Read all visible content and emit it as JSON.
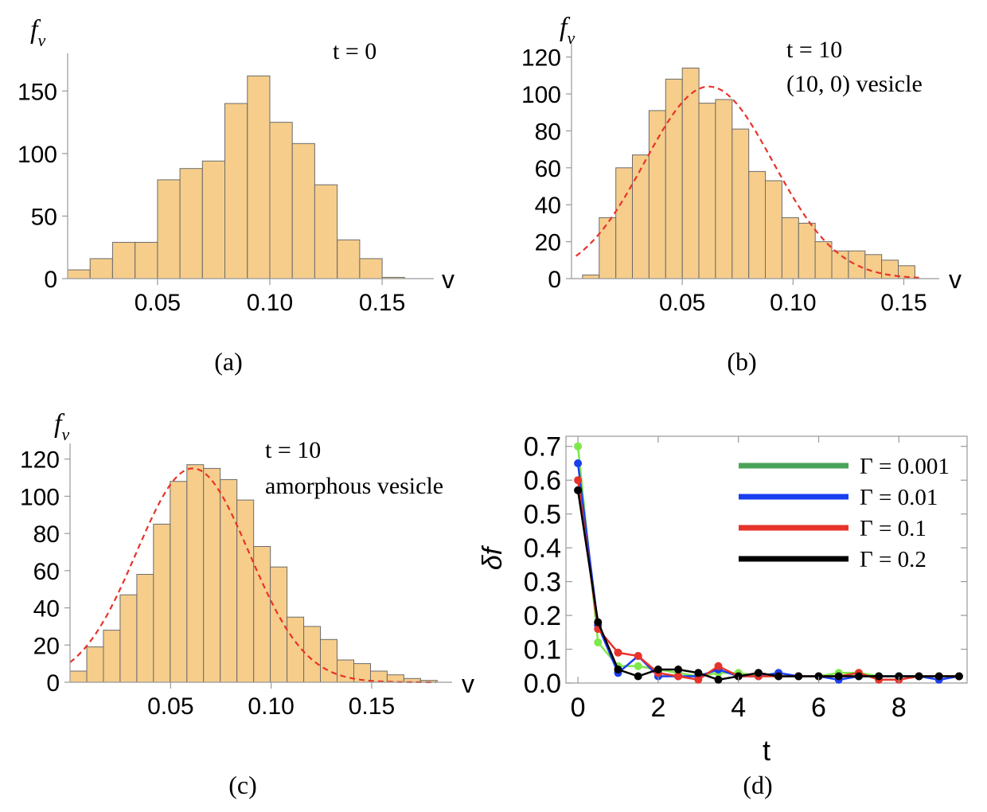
{
  "chart_data": [
    {
      "type": "histogram",
      "panel_label": "(a)",
      "ylabel_main": "f",
      "ylabel_sub": "v",
      "xlabel": "v",
      "annotation": [
        "t = 0"
      ],
      "xlim": [
        0.01,
        0.173
      ],
      "ylim": [
        0,
        175
      ],
      "xticks": [
        0.05,
        0.1,
        0.15
      ],
      "xtick_labels": [
        "0.05",
        "0.10",
        "0.15"
      ],
      "yticks": [
        0,
        50,
        100,
        150
      ],
      "ytick_labels": [
        "0",
        "50",
        "100",
        "150"
      ],
      "bin_start": 0.01,
      "bin_width": 0.01,
      "values": [
        7,
        16,
        29,
        29,
        79,
        88,
        94,
        140,
        162,
        125,
        108,
        75,
        31,
        16,
        1
      ],
      "bar_color": "#f6cd8b",
      "fit": null
    },
    {
      "type": "histogram",
      "panel_label": "(b)",
      "ylabel_main": "f",
      "ylabel_sub": "v",
      "xlabel": "v",
      "annotation": [
        "t = 10",
        "(10, 0) vesicle"
      ],
      "xlim": [
        0.0,
        0.166
      ],
      "ylim": [
        0,
        125
      ],
      "xticks": [
        0.05,
        0.1,
        0.15
      ],
      "xtick_labels": [
        "0.05",
        "0.10",
        "0.15"
      ],
      "yticks": [
        0,
        20,
        40,
        60,
        80,
        100,
        120
      ],
      "ytick_labels": [
        "0",
        "20",
        "40",
        "60",
        "80",
        "100",
        "120"
      ],
      "bin_start": 0.005,
      "bin_width": 0.0075,
      "values": [
        2,
        33,
        60,
        67,
        91,
        108,
        114,
        95,
        97,
        81,
        58,
        53,
        33,
        30,
        20,
        15,
        15,
        13,
        10,
        7,
        0
      ],
      "bar_color": "#f6cd8b",
      "fit": {
        "peak_x": 0.062,
        "peak_y": 104,
        "sigma": 0.029,
        "x_from": 0.002,
        "x_to": 0.157,
        "color": "#e8332a",
        "style": "dashed"
      }
    },
    {
      "type": "histogram",
      "panel_label": "(c)",
      "ylabel_main": "f",
      "ylabel_sub": "v",
      "xlabel": "v",
      "annotation": [
        "t = 10",
        "amorphous vesicle"
      ],
      "xlim": [
        0.0,
        0.19
      ],
      "ylim": [
        0,
        125
      ],
      "xticks": [
        0.05,
        0.1,
        0.15
      ],
      "xtick_labels": [
        "0.05",
        "0.10",
        "0.15"
      ],
      "yticks": [
        0,
        20,
        40,
        60,
        80,
        100,
        120
      ],
      "ytick_labels": [
        "0",
        "20",
        "40",
        "60",
        "80",
        "100",
        "120"
      ],
      "bin_start": 0.0,
      "bin_width": 0.0083,
      "values": [
        6,
        19,
        28,
        47,
        58,
        85,
        108,
        117,
        115,
        109,
        98,
        73,
        62,
        35,
        30,
        23,
        12,
        10,
        6,
        4,
        2,
        1,
        0
      ],
      "bar_color": "#f6cd8b",
      "fit": {
        "peak_x": 0.061,
        "peak_y": 115,
        "sigma": 0.028,
        "x_from": 0.0,
        "x_to": 0.182,
        "color": "#e8332a",
        "style": "dashed"
      }
    },
    {
      "type": "line",
      "panel_label": "(d)",
      "xlabel": "t",
      "ylabel": "δf",
      "xlim": [
        -0.3,
        9.7
      ],
      "ylim": [
        0.0,
        0.73
      ],
      "xticks": [
        0,
        2,
        4,
        6,
        8
      ],
      "xtick_labels": [
        "0",
        "2",
        "4",
        "6",
        "8"
      ],
      "yticks": [
        0.0,
        0.1,
        0.2,
        0.3,
        0.4,
        0.5,
        0.6,
        0.7
      ],
      "ytick_labels": [
        "0.0",
        "0.1",
        "0.2",
        "0.3",
        "0.4",
        "0.5",
        "0.6",
        "0.7"
      ],
      "x": [
        0,
        0.5,
        1,
        1.5,
        2,
        2.5,
        3,
        3.5,
        4,
        4.5,
        5,
        5.5,
        6,
        6.5,
        7,
        7.5,
        8,
        8.5,
        9,
        9.5
      ],
      "series": [
        {
          "name": "Γ = 0.001",
          "legend_color": "#4aa35a",
          "marker_color": "#7ee84a",
          "values": [
            0.7,
            0.12,
            0.05,
            0.05,
            0.04,
            0.03,
            0.02,
            0.03,
            0.03,
            0.02,
            0.02,
            0.02,
            0.02,
            0.03,
            0.03,
            0.02,
            0.02,
            0.02,
            0.02,
            0.02
          ]
        },
        {
          "name": "Γ = 0.01",
          "legend_color": "#1a3ff0",
          "marker_color": "#1a3ff0",
          "values": [
            0.65,
            0.17,
            0.03,
            0.08,
            0.02,
            0.02,
            0.02,
            0.04,
            0.02,
            0.02,
            0.03,
            0.02,
            0.02,
            0.01,
            0.02,
            0.02,
            0.02,
            0.02,
            0.01,
            0.02
          ]
        },
        {
          "name": "Γ = 0.1",
          "legend_color": "#e8332a",
          "marker_color": "#e8332a",
          "values": [
            0.6,
            0.16,
            0.09,
            0.08,
            0.03,
            0.02,
            0.01,
            0.05,
            0.02,
            0.02,
            0.02,
            0.02,
            0.02,
            0.02,
            0.03,
            0.01,
            0.01,
            0.02,
            0.02,
            0.02
          ]
        },
        {
          "name": "Γ = 0.2",
          "legend_color": "#000000",
          "marker_color": "#000000",
          "values": [
            0.57,
            0.18,
            0.04,
            0.02,
            0.04,
            0.04,
            0.03,
            0.01,
            0.02,
            0.03,
            0.02,
            0.02,
            0.02,
            0.02,
            0.02,
            0.02,
            0.02,
            0.02,
            0.02,
            0.02
          ]
        }
      ]
    }
  ]
}
